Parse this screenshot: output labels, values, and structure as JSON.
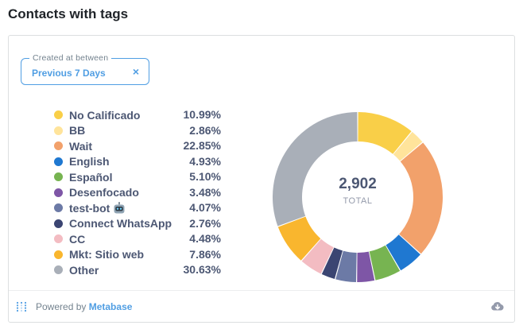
{
  "header": {
    "title": "Contacts with tags"
  },
  "filter": {
    "label": "Created at between",
    "value": "Previous 7 Days",
    "clear_icon": "×"
  },
  "chart_data": {
    "type": "pie",
    "total_value": 2902,
    "total_display": "2,902",
    "total_label": "TOTAL",
    "categories": [
      "No Calificado",
      "BB",
      "Wait",
      "English",
      "Español",
      "Desenfocado",
      "test-bot",
      "Connect WhatsApp",
      "CC",
      "Mkt: Sitio web",
      "Other"
    ],
    "values": [
      10.99,
      2.86,
      22.85,
      4.93,
      5.1,
      3.48,
      4.07,
      2.76,
      4.48,
      7.86,
      30.63
    ],
    "labels": [
      "10.99%",
      "2.86%",
      "22.85%",
      "4.93%",
      "5.10%",
      "3.48%",
      "4.07%",
      "2.76%",
      "4.48%",
      "7.86%",
      "30.63%"
    ],
    "colors": [
      "#F9CF48",
      "#FFE49B",
      "#F2A16B",
      "#1F78D1",
      "#77B451",
      "#7E56A6",
      "#6C7AA6",
      "#3B4572",
      "#F3BCC2",
      "#F9B62E",
      "#A9AFB8"
    ],
    "icons": [
      null,
      null,
      null,
      null,
      null,
      null,
      "robot-icon",
      null,
      null,
      null,
      null
    ]
  },
  "footer": {
    "powered_prefix": "Powered by",
    "powered_brand": "Metabase",
    "logo_icon": "metabase-logo-icon",
    "download_icon": "download-icon"
  }
}
